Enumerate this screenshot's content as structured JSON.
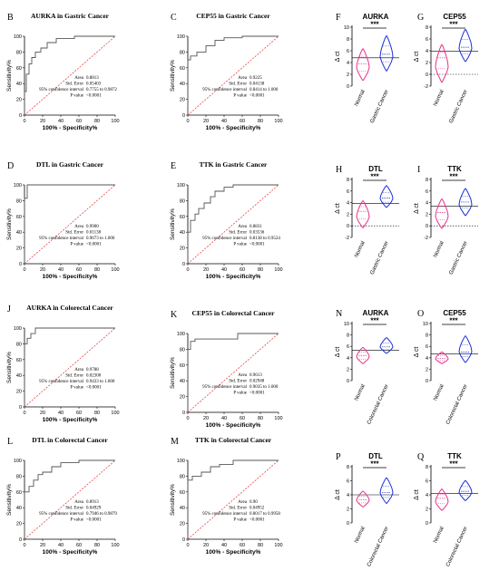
{
  "roc_panels": [
    {
      "letter": "B",
      "title": "AURKA in Gastric Cancer",
      "ylabel": "Sensitivity%",
      "xlabel": "100% - Specificity%",
      "stats": [
        [
          "Area",
          "0.8813"
        ],
        [
          "Std. Error",
          "0.05403"
        ],
        [
          "95% confidence interval",
          "0.7755 to 0.9872"
        ],
        [
          "P value",
          "<0.0001"
        ]
      ],
      "curve": [
        [
          0,
          0
        ],
        [
          0,
          30
        ],
        [
          2,
          30
        ],
        [
          2,
          52
        ],
        [
          5,
          52
        ],
        [
          5,
          65
        ],
        [
          8,
          65
        ],
        [
          8,
          73
        ],
        [
          12,
          73
        ],
        [
          12,
          80
        ],
        [
          18,
          80
        ],
        [
          18,
          85
        ],
        [
          25,
          85
        ],
        [
          25,
          92
        ],
        [
          35,
          92
        ],
        [
          35,
          97
        ],
        [
          55,
          97
        ],
        [
          55,
          100
        ],
        [
          100,
          100
        ]
      ]
    },
    {
      "letter": "C",
      "title": "CEP55 in Gastric Cancer",
      "ylabel": "Sensitivity%",
      "xlabel": "100% - Specificity%",
      "stats": [
        [
          "Area",
          "0.9225"
        ],
        [
          "Std. Error",
          "0.04138"
        ],
        [
          "95% confidence interval",
          "0.8414 to 1.000"
        ],
        [
          "P value",
          "<0.0001"
        ]
      ],
      "curve": [
        [
          0,
          0
        ],
        [
          0,
          70
        ],
        [
          3,
          70
        ],
        [
          3,
          75
        ],
        [
          10,
          75
        ],
        [
          10,
          80
        ],
        [
          20,
          80
        ],
        [
          20,
          88
        ],
        [
          30,
          88
        ],
        [
          30,
          95
        ],
        [
          40,
          95
        ],
        [
          40,
          98
        ],
        [
          60,
          98
        ],
        [
          60,
          100
        ],
        [
          100,
          100
        ]
      ]
    },
    {
      "letter": "D",
      "title": "DTL in Gastric Cancer",
      "ylabel": "Sensitivity%",
      "xlabel": "100% - Specificity%",
      "stats": [
        [
          "Area",
          "0.9900"
        ],
        [
          "Std. Error",
          "0.01138"
        ],
        [
          "95% confidence interval",
          "0.9673 to 1.000"
        ],
        [
          "P value",
          "<0.0001"
        ]
      ],
      "curve": [
        [
          0,
          0
        ],
        [
          0,
          83
        ],
        [
          3,
          83
        ],
        [
          3,
          100
        ],
        [
          100,
          100
        ]
      ]
    },
    {
      "letter": "E",
      "title": "TTK in Gastric Cancer",
      "ylabel": "Sensitivity%",
      "xlabel": "100% - Specificity%",
      "stats": [
        [
          "Area",
          "0.8831"
        ],
        [
          "Std. Error",
          "0.03536"
        ],
        [
          "95% confidence interval",
          "0.8138 to 0.9524"
        ],
        [
          "P value",
          "<0.0001"
        ]
      ],
      "curve": [
        [
          0,
          0
        ],
        [
          0,
          40
        ],
        [
          3,
          40
        ],
        [
          3,
          55
        ],
        [
          8,
          55
        ],
        [
          8,
          63
        ],
        [
          12,
          63
        ],
        [
          12,
          70
        ],
        [
          18,
          70
        ],
        [
          18,
          77
        ],
        [
          25,
          77
        ],
        [
          25,
          85
        ],
        [
          30,
          85
        ],
        [
          30,
          92
        ],
        [
          40,
          92
        ],
        [
          40,
          97
        ],
        [
          50,
          97
        ],
        [
          50,
          100
        ],
        [
          100,
          100
        ]
      ]
    },
    {
      "letter": "J",
      "title": "AURKA in Colorectal Cancer",
      "ylabel": "Sensitivity%",
      "xlabel": "100% - Specificity%",
      "stats": [
        [
          "Area",
          "0.9788"
        ],
        [
          "Std. Error",
          "0.02300"
        ],
        [
          "95% confidence interval",
          "0.9433 to 1.000"
        ],
        [
          "P value",
          "<0.0001"
        ]
      ],
      "curve": [
        [
          0,
          0
        ],
        [
          0,
          80
        ],
        [
          3,
          80
        ],
        [
          3,
          87
        ],
        [
          7,
          87
        ],
        [
          7,
          93
        ],
        [
          12,
          93
        ],
        [
          12,
          100
        ],
        [
          100,
          100
        ]
      ]
    },
    {
      "letter": "K",
      "title": "CEP55 in Colorectal Cancer",
      "ylabel": "Sensitivity%",
      "xlabel": "100% - Specificity%",
      "stats": [
        [
          "Area",
          "0.9613"
        ],
        [
          "Std. Error",
          "0.02948"
        ],
        [
          "95% confidence interval",
          "0.9035 to 1.000"
        ],
        [
          "P value",
          "<0.0001"
        ]
      ],
      "curve": [
        [
          0,
          0
        ],
        [
          0,
          80
        ],
        [
          3,
          80
        ],
        [
          3,
          90
        ],
        [
          8,
          90
        ],
        [
          8,
          93
        ],
        [
          55,
          93
        ],
        [
          55,
          100
        ],
        [
          100,
          100
        ]
      ]
    },
    {
      "letter": "L",
      "title": "DTL in Colorectal Cancer",
      "ylabel": "Sensitivity%",
      "xlabel": "100% - Specificity%",
      "stats": [
        [
          "Area",
          "0.8913"
        ],
        [
          "Std. Error",
          "0.04929"
        ],
        [
          "95% confidence interval",
          "0.7946 to 0.9879"
        ],
        [
          "P value",
          "<0.0001"
        ]
      ],
      "curve": [
        [
          0,
          0
        ],
        [
          0,
          60
        ],
        [
          5,
          60
        ],
        [
          5,
          67
        ],
        [
          10,
          67
        ],
        [
          10,
          75
        ],
        [
          15,
          75
        ],
        [
          15,
          82
        ],
        [
          20,
          82
        ],
        [
          20,
          85
        ],
        [
          30,
          85
        ],
        [
          30,
          92
        ],
        [
          40,
          92
        ],
        [
          40,
          97
        ],
        [
          60,
          97
        ],
        [
          60,
          100
        ],
        [
          100,
          100
        ]
      ]
    },
    {
      "letter": "M",
      "title": "TTK in Colorectal Cancer",
      "ylabel": "Sensitivity%",
      "xlabel": "100% - Specificity%",
      "stats": [
        [
          "Area",
          "0.90"
        ],
        [
          "Std. Error",
          "0.04952"
        ],
        [
          "95% confidence interval",
          "0.8017 to 0.9958"
        ],
        [
          "P value",
          "<0.0001"
        ]
      ],
      "curve": [
        [
          0,
          0
        ],
        [
          0,
          75
        ],
        [
          5,
          75
        ],
        [
          5,
          80
        ],
        [
          15,
          80
        ],
        [
          15,
          85
        ],
        [
          25,
          85
        ],
        [
          25,
          92
        ],
        [
          35,
          92
        ],
        [
          35,
          95
        ],
        [
          50,
          95
        ],
        [
          50,
          100
        ],
        [
          100,
          100
        ]
      ]
    }
  ],
  "violin_panels": [
    {
      "letter": "F",
      "title": "AURKA",
      "ylabel": "Δ ct",
      "ymin": 0,
      "ymax": 10,
      "ticks": [
        0,
        2,
        4,
        6,
        8,
        10
      ],
      "dotted_at": null,
      "groups": [
        "Normal",
        "Gastric Cancer"
      ],
      "colors": [
        "#e8328a",
        "#1c2fd6"
      ],
      "sig": "***",
      "medians": [
        3.8,
        5.4
      ],
      "lo": [
        1.0,
        2.6
      ],
      "hi": [
        6.3,
        8.5
      ]
    },
    {
      "letter": "G",
      "title": "CEP55",
      "ylabel": "Δ ct",
      "ymin": -2,
      "ymax": 8,
      "ticks": [
        -2,
        0,
        2,
        4,
        6,
        8
      ],
      "dotted_at": 0,
      "groups": [
        "Normal",
        "Gastric Cancer"
      ],
      "colors": [
        "#e8328a",
        "#1c2fd6"
      ],
      "sig": "***",
      "medians": [
        2.8,
        4.6
      ],
      "lo": [
        -1.3,
        2.2
      ],
      "hi": [
        5.0,
        7.6
      ]
    },
    {
      "letter": "H",
      "title": "DTL",
      "ylabel": "Δ ct",
      "ymin": -2,
      "ymax": 8,
      "ticks": [
        -2,
        0,
        2,
        4,
        6,
        8
      ],
      "dotted_at": 0,
      "groups": [
        "Normal",
        "Gastric Cancer"
      ],
      "colors": [
        "#e8328a",
        "#1c2fd6"
      ],
      "sig": "***",
      "medians": [
        2.5,
        4.8
      ],
      "lo": [
        -0.3,
        3.2
      ],
      "hi": [
        4.3,
        6.9
      ]
    },
    {
      "letter": "I",
      "title": "TTK",
      "ylabel": "Δ ct",
      "ymin": -2,
      "ymax": 8,
      "ticks": [
        -2,
        0,
        2,
        4,
        6,
        8
      ],
      "dotted_at": 0,
      "groups": [
        "Normal",
        "Gastric Cancer"
      ],
      "colors": [
        "#e8328a",
        "#1c2fd6"
      ],
      "sig": "***",
      "medians": [
        2.3,
        4.1
      ],
      "lo": [
        -0.4,
        1.8
      ],
      "hi": [
        4.6,
        6.4
      ]
    },
    {
      "letter": "N",
      "title": "AURKA",
      "ylabel": "Δ ct",
      "ymin": 0,
      "ymax": 10,
      "ticks": [
        0,
        2,
        4,
        6,
        8,
        10
      ],
      "dotted_at": null,
      "groups": [
        "Normal",
        "Colorectal Cancer"
      ],
      "colors": [
        "#e8328a",
        "#1c2fd6"
      ],
      "sig": "***",
      "medians": [
        4.4,
        5.9
      ],
      "lo": [
        3.0,
        4.8
      ],
      "hi": [
        5.8,
        7.5
      ]
    },
    {
      "letter": "O",
      "title": "CEP55",
      "ylabel": "Δ ct",
      "ymin": 0,
      "ymax": 10,
      "ticks": [
        0,
        2,
        4,
        6,
        8,
        10
      ],
      "dotted_at": null,
      "groups": [
        "Normal",
        "Colorectal Cancer"
      ],
      "colors": [
        "#e8328a",
        "#1c2fd6"
      ],
      "sig": "***",
      "medians": [
        3.9,
        5.0
      ],
      "lo": [
        3.0,
        3.2
      ],
      "hi": [
        5.0,
        7.8
      ]
    },
    {
      "letter": "P",
      "title": "DTL",
      "ylabel": "Δ ct",
      "ymin": 0,
      "ymax": 8,
      "ticks": [
        0,
        2,
        4,
        6,
        8
      ],
      "dotted_at": null,
      "groups": [
        "Normal",
        "Colorectal Cancer"
      ],
      "colors": [
        "#e8328a",
        "#1c2fd6"
      ],
      "sig": "***",
      "medians": [
        3.3,
        4.3
      ],
      "lo": [
        2.3,
        2.8
      ],
      "hi": [
        4.5,
        6.4
      ]
    },
    {
      "letter": "Q",
      "title": "TTK",
      "ylabel": "Δ ct",
      "ymin": 0,
      "ymax": 8,
      "ticks": [
        0,
        2,
        4,
        6,
        8
      ],
      "dotted_at": null,
      "groups": [
        "Normal",
        "Colorectal Cancer"
      ],
      "colors": [
        "#e8328a",
        "#1c2fd6"
      ],
      "sig": "***",
      "medians": [
        3.5,
        4.5
      ],
      "lo": [
        1.8,
        3.2
      ],
      "hi": [
        4.8,
        6.0
      ]
    }
  ],
  "chart_data": [
    {
      "type": "line",
      "title": "AURKA in Gastric Cancer",
      "xlabel": "100% - Specificity%",
      "ylabel": "Sensitivity%",
      "xlim": [
        0,
        100
      ],
      "ylim": [
        0,
        100
      ],
      "auc": 0.8813
    },
    {
      "type": "line",
      "title": "CEP55 in Gastric Cancer",
      "xlabel": "100% - Specificity%",
      "ylabel": "Sensitivity%",
      "xlim": [
        0,
        100
      ],
      "ylim": [
        0,
        100
      ],
      "auc": 0.9225
    },
    {
      "type": "line",
      "title": "DTL in Gastric Cancer",
      "xlabel": "100% - Specificity%",
      "ylabel": "Sensitivity%",
      "xlim": [
        0,
        100
      ],
      "ylim": [
        0,
        100
      ],
      "auc": 0.99
    },
    {
      "type": "line",
      "title": "TTK in Gastric Cancer",
      "xlabel": "100% - Specificity%",
      "ylabel": "Sensitivity%",
      "xlim": [
        0,
        100
      ],
      "ylim": [
        0,
        100
      ],
      "auc": 0.8831
    },
    {
      "type": "line",
      "title": "AURKA in Colorectal Cancer",
      "xlabel": "100% - Specificity%",
      "ylabel": "Sensitivity%",
      "xlim": [
        0,
        100
      ],
      "ylim": [
        0,
        100
      ],
      "auc": 0.9788
    },
    {
      "type": "line",
      "title": "CEP55 in Colorectal Cancer",
      "xlabel": "100% - Specificity%",
      "ylabel": "Sensitivity%",
      "xlim": [
        0,
        100
      ],
      "ylim": [
        0,
        100
      ],
      "auc": 0.9613
    },
    {
      "type": "line",
      "title": "DTL in Colorectal Cancer",
      "xlabel": "100% - Specificity%",
      "ylabel": "Sensitivity%",
      "xlim": [
        0,
        100
      ],
      "ylim": [
        0,
        100
      ],
      "auc": 0.8913
    },
    {
      "type": "line",
      "title": "TTK in Colorectal Cancer",
      "xlabel": "100% - Specificity%",
      "ylabel": "Sensitivity%",
      "xlim": [
        0,
        100
      ],
      "ylim": [
        0,
        100
      ],
      "auc": 0.9
    },
    {
      "type": "violin",
      "title": "AURKA",
      "categories": [
        "Normal",
        "Gastric Cancer"
      ],
      "ylabel": "Δ ct",
      "ylim": [
        0,
        10
      ],
      "median": [
        3.8,
        5.4
      ],
      "significance": "***"
    },
    {
      "type": "violin",
      "title": "CEP55",
      "categories": [
        "Normal",
        "Gastric Cancer"
      ],
      "ylabel": "Δ ct",
      "ylim": [
        -2,
        8
      ],
      "median": [
        2.8,
        4.6
      ],
      "significance": "***"
    },
    {
      "type": "violin",
      "title": "DTL",
      "categories": [
        "Normal",
        "Gastric Cancer"
      ],
      "ylabel": "Δ ct",
      "ylim": [
        -2,
        8
      ],
      "median": [
        2.5,
        4.8
      ],
      "significance": "***"
    },
    {
      "type": "violin",
      "title": "TTK",
      "categories": [
        "Normal",
        "Gastric Cancer"
      ],
      "ylabel": "Δ ct",
      "ylim": [
        -2,
        8
      ],
      "median": [
        2.3,
        4.1
      ],
      "significance": "***"
    },
    {
      "type": "violin",
      "title": "AURKA",
      "categories": [
        "Normal",
        "Colorectal Cancer"
      ],
      "ylabel": "Δ ct",
      "ylim": [
        0,
        10
      ],
      "median": [
        4.4,
        5.9
      ],
      "significance": "***"
    },
    {
      "type": "violin",
      "title": "CEP55",
      "categories": [
        "Normal",
        "Colorectal Cancer"
      ],
      "ylabel": "Δ ct",
      "ylim": [
        0,
        10
      ],
      "median": [
        3.9,
        5.0
      ],
      "significance": "***"
    },
    {
      "type": "violin",
      "title": "DTL",
      "categories": [
        "Normal",
        "Colorectal Cancer"
      ],
      "ylabel": "Δ ct",
      "ylim": [
        0,
        8
      ],
      "median": [
        3.3,
        4.3
      ],
      "significance": "***"
    },
    {
      "type": "violin",
      "title": "TTK",
      "categories": [
        "Normal",
        "Colorectal Cancer"
      ],
      "ylabel": "Δ ct",
      "ylim": [
        0,
        8
      ],
      "median": [
        3.5,
        4.5
      ],
      "significance": "***"
    }
  ]
}
